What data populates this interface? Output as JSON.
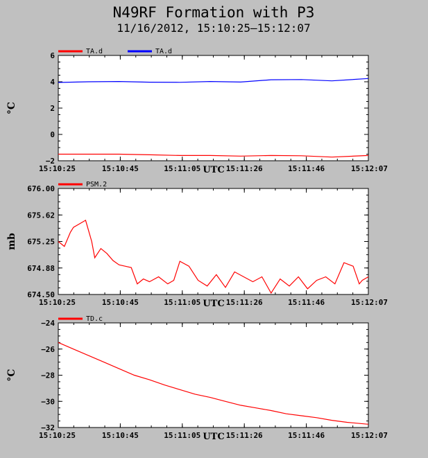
{
  "title": "N49RF Formation with P3",
  "subtitle": "11/16/2012, 15:10:25–15:12:07",
  "colors": {
    "background": "#c0c0c0",
    "plot_bg": "#ffffff",
    "red": "#ff0000",
    "blue": "#0000ff"
  },
  "chart_data": [
    {
      "type": "line",
      "ylabel": "°C",
      "xlabel": "UTC",
      "x_tick_labels": [
        "15:10:25",
        "15:10:45",
        "15:11:05",
        "15:11:26",
        "15:11:46",
        "15:12:07"
      ],
      "y_tick_labels": [
        "6",
        "4",
        "2",
        "0",
        "−2"
      ],
      "ylim": [
        -2,
        6
      ],
      "grid": false,
      "legend_position": "top-left",
      "x": [
        0,
        10,
        20,
        30,
        40,
        50,
        60,
        70,
        80,
        90,
        102
      ],
      "series": [
        {
          "name": "TA.d",
          "color": "#ff0000",
          "values": [
            -1.5,
            -1.5,
            -1.5,
            -1.55,
            -1.6,
            -1.6,
            -1.65,
            -1.6,
            -1.62,
            -1.72,
            -1.6
          ]
        },
        {
          "name": "TA.d",
          "color": "#0000ff",
          "values": [
            3.95,
            4.0,
            4.02,
            3.97,
            3.96,
            4.02,
            3.98,
            4.15,
            4.17,
            4.07,
            4.25
          ]
        }
      ]
    },
    {
      "type": "line",
      "ylabel": "mb",
      "xlabel": "UTC",
      "x_tick_labels": [
        "15:10:25",
        "15:10:45",
        "15:11:05",
        "15:11:26",
        "15:11:46",
        "15:12:07"
      ],
      "y_tick_labels": [
        "676.00",
        "675.62",
        "675.25",
        "674.88",
        "674.50"
      ],
      "ylim": [
        674.5,
        676.0
      ],
      "grid": false,
      "legend_position": "top-left",
      "x": [
        0,
        2,
        4,
        5,
        7,
        9,
        11,
        12,
        14,
        16,
        18,
        20,
        22,
        24,
        26,
        28,
        30,
        33,
        36,
        38,
        40,
        43,
        46,
        49,
        52,
        55,
        58,
        61,
        64,
        67,
        70,
        73,
        76,
        79,
        82,
        85,
        88,
        91,
        94,
        97,
        99,
        100,
        102
      ],
      "series": [
        {
          "name": "PSM.2",
          "color": "#ff0000",
          "values": [
            675.25,
            675.18,
            675.38,
            675.45,
            675.5,
            675.55,
            675.25,
            675.02,
            675.15,
            675.08,
            674.98,
            674.92,
            674.9,
            674.88,
            674.65,
            674.72,
            674.68,
            674.75,
            674.65,
            674.7,
            674.97,
            674.9,
            674.7,
            674.62,
            674.78,
            674.6,
            674.82,
            674.75,
            674.68,
            674.75,
            674.52,
            674.72,
            674.62,
            674.75,
            674.58,
            674.7,
            674.75,
            674.65,
            674.95,
            674.9,
            674.65,
            674.7,
            674.75
          ]
        }
      ]
    },
    {
      "type": "line",
      "ylabel": "°C",
      "xlabel": "UTC",
      "x_tick_labels": [
        "15:10:25",
        "15:10:45",
        "15:11:05",
        "15:11:26",
        "15:11:46",
        "15:12:07"
      ],
      "y_tick_labels": [
        "−24",
        "−26",
        "−28",
        "−30",
        "−32"
      ],
      "ylim": [
        -32,
        -24
      ],
      "grid": false,
      "legend_position": "top-left",
      "x": [
        0,
        5,
        10,
        15,
        20,
        25,
        30,
        35,
        40,
        45,
        50,
        55,
        60,
        65,
        70,
        75,
        80,
        85,
        90,
        95,
        102
      ],
      "series": [
        {
          "name": "TD.c",
          "color": "#ff0000",
          "values": [
            -25.5,
            -26.0,
            -26.5,
            -27.0,
            -27.5,
            -28.0,
            -28.35,
            -28.75,
            -29.1,
            -29.45,
            -29.7,
            -30.0,
            -30.3,
            -30.5,
            -30.7,
            -30.95,
            -31.1,
            -31.25,
            -31.45,
            -31.6,
            -31.75
          ]
        }
      ]
    }
  ]
}
